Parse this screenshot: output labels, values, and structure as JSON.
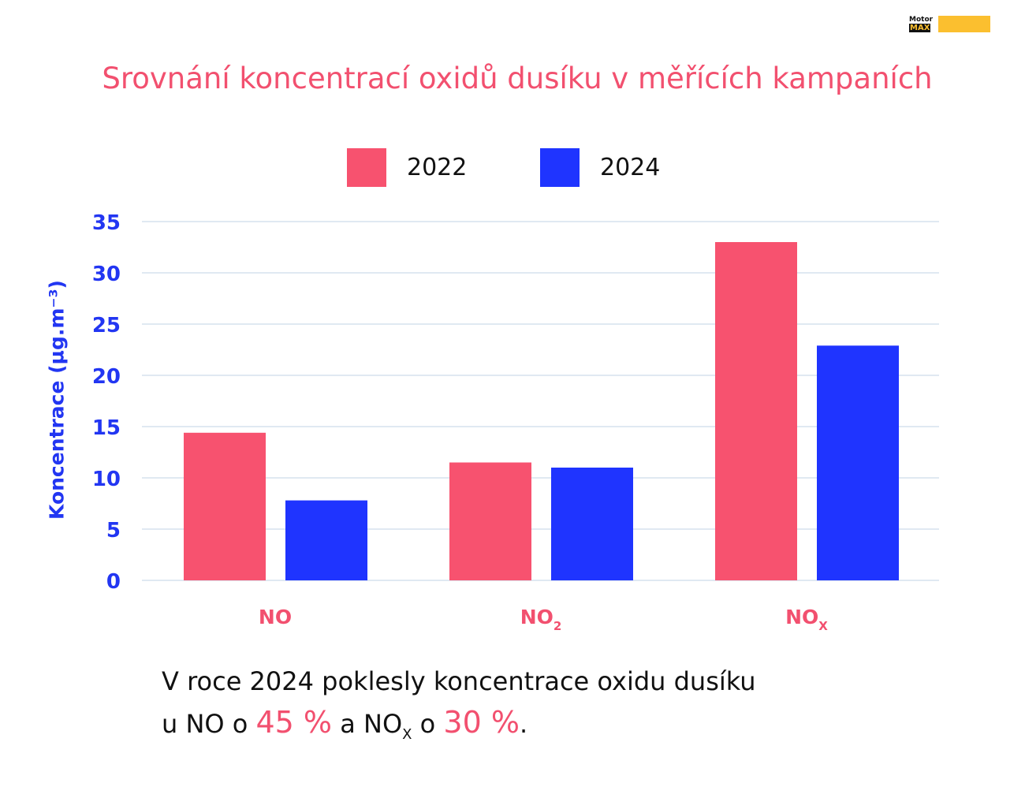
{
  "logo": {
    "top": "Motor",
    "bottom": "MAX"
  },
  "title": "Srovnání koncentrací oxidů dusíku v měřících kampaních",
  "colors": {
    "s2022": "#f7526f",
    "s2024": "#1f34ff",
    "axis": "#2236f2",
    "grid": "#d6e2ee",
    "accent": "#f2506f"
  },
  "chart_data": {
    "type": "bar",
    "title": "Srovnání koncentrací oxidů dusíku v měřících kampaních",
    "ylabel": "Koncentrace (µg.m⁻³)",
    "ylim": [
      0,
      35
    ],
    "yticks": [
      0,
      5,
      10,
      15,
      20,
      25,
      30,
      35
    ],
    "grid": true,
    "legend_position": "top-center",
    "categories": [
      {
        "base": "NO",
        "sub": ""
      },
      {
        "base": "NO",
        "sub": "2"
      },
      {
        "base": "NO",
        "sub": "X"
      }
    ],
    "series": [
      {
        "name": "2022",
        "values": [
          14.4,
          11.5,
          33.0
        ]
      },
      {
        "name": "2024",
        "values": [
          7.8,
          11.0,
          22.9
        ]
      }
    ]
  },
  "footnote": {
    "line1": "V roce 2024 poklesly koncentrace oxidu dusíku",
    "l2_a": "u NO o ",
    "l2_pct1": "45 %",
    "l2_b": " a NO",
    "l2_sub": "X",
    "l2_c": " o ",
    "l2_pct2": "30 %",
    "l2_d": "."
  }
}
